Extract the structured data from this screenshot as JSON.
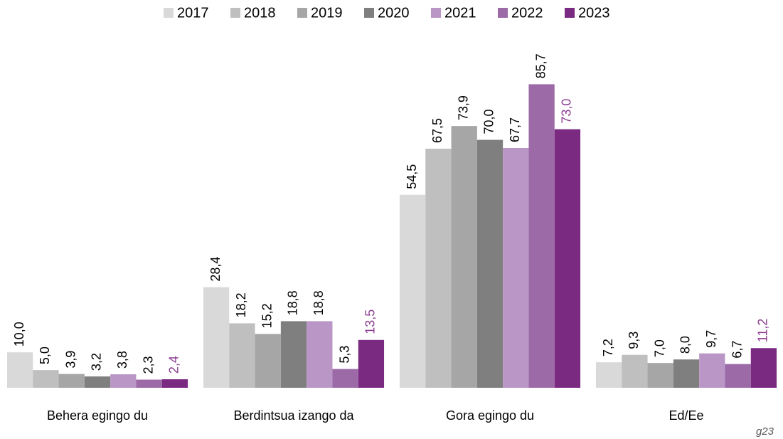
{
  "chart_data": {
    "type": "bar",
    "categories": [
      "Behera egingo du",
      "Berdintsua izango da",
      "Gora egingo du",
      "Ed/Ee"
    ],
    "series": [
      {
        "name": "2017",
        "color": "#d9d9d9",
        "label_color": "#000000",
        "values": [
          10.0,
          28.4,
          54.5,
          7.2
        ],
        "value_labels": [
          "10,0",
          "28,4",
          "54,5",
          "7,2"
        ]
      },
      {
        "name": "2018",
        "color": "#bfbfbf",
        "label_color": "#000000",
        "values": [
          5.0,
          18.2,
          67.5,
          9.3
        ],
        "value_labels": [
          "5,0",
          "18,2",
          "67,5",
          "9,3"
        ]
      },
      {
        "name": "2019",
        "color": "#a6a6a6",
        "label_color": "#000000",
        "values": [
          3.9,
          15.2,
          73.9,
          7.0
        ],
        "value_labels": [
          "3,9",
          "15,2",
          "73,9",
          "7,0"
        ]
      },
      {
        "name": "2020",
        "color": "#7f7f7f",
        "label_color": "#000000",
        "values": [
          3.2,
          18.8,
          70.0,
          8.0
        ],
        "value_labels": [
          "3,2",
          "18,8",
          "70,0",
          "8,0"
        ]
      },
      {
        "name": "2021",
        "color": "#b996c6",
        "label_color": "#000000",
        "values": [
          3.8,
          18.8,
          67.7,
          9.7
        ],
        "value_labels": [
          "3,8",
          "18,8",
          "67,7",
          "9,7"
        ]
      },
      {
        "name": "2022",
        "color": "#9d6aa8",
        "label_color": "#000000",
        "values": [
          2.3,
          5.3,
          85.7,
          6.7
        ],
        "value_labels": [
          "2,3",
          "5,3",
          "85,7",
          "6,7"
        ]
      },
      {
        "name": "2023",
        "color": "#7b2a82",
        "label_color": "#8b3d91",
        "values": [
          2.4,
          13.5,
          73.0,
          11.2
        ],
        "value_labels": [
          "2,4",
          "13,5",
          "73,0",
          "11,2"
        ]
      }
    ],
    "ylim": [
      0,
      90
    ],
    "legend": "top",
    "annotation": "g23"
  }
}
